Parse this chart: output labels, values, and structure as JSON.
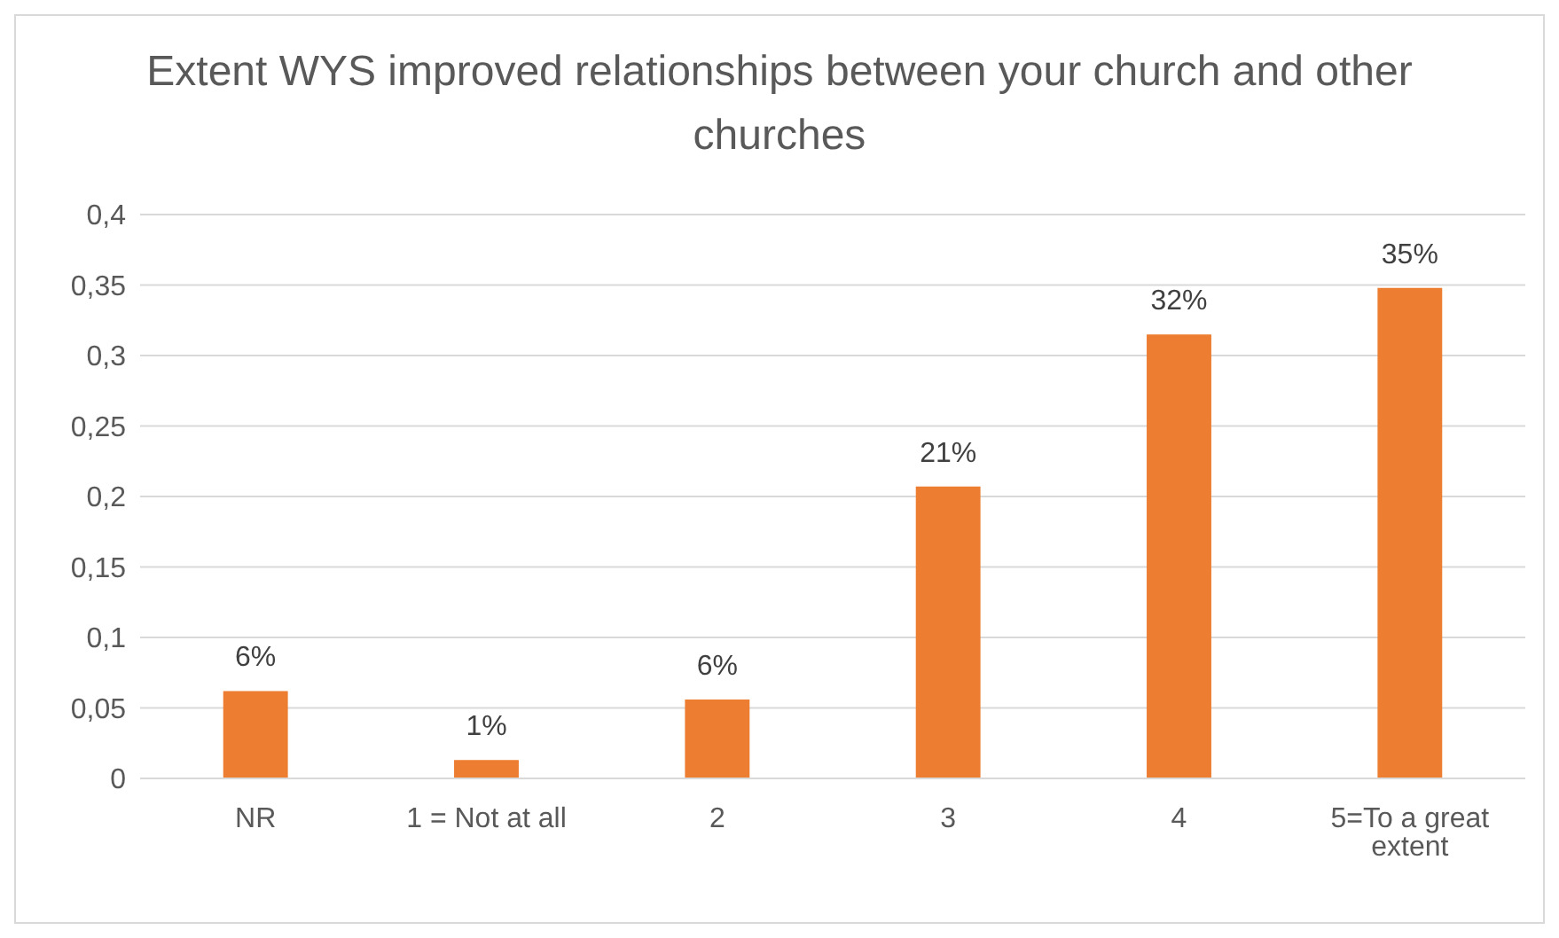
{
  "chart_data": {
    "type": "bar",
    "title": "Extent WYS improved relationships between your church and other churches",
    "categories": [
      "NR",
      "1 = Not at all",
      "2",
      "3",
      "4",
      "5=To a great extent"
    ],
    "values": [
      0.062,
      0.013,
      0.056,
      0.207,
      0.315,
      0.348
    ],
    "value_labels": [
      "6%",
      "1%",
      "6%",
      "21%",
      "32%",
      "35%"
    ],
    "color": "#ed7d31",
    "ylim": [
      0,
      0.4
    ],
    "yticks": [
      {
        "value": 0,
        "label": "0"
      },
      {
        "value": 0.05,
        "label": "0,05"
      },
      {
        "value": 0.1,
        "label": "0,1"
      },
      {
        "value": 0.15,
        "label": "0,15"
      },
      {
        "value": 0.2,
        "label": "0,2"
      },
      {
        "value": 0.25,
        "label": "0,25"
      },
      {
        "value": 0.3,
        "label": "0,3"
      },
      {
        "value": 0.35,
        "label": "0,35"
      },
      {
        "value": 0.4,
        "label": "0,4"
      }
    ],
    "grid": "y"
  }
}
